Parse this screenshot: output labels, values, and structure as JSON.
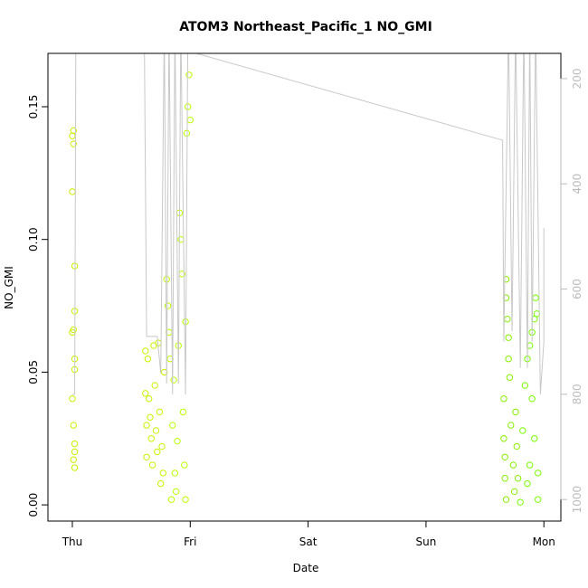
{
  "chart_data": {
    "type": "scatter",
    "title": "ATOM3 Northeast_Pacific_1 NO_GMI",
    "xlabel": "Date",
    "ylabel": "NO_GMI",
    "xlim": [
      -0.207,
      4.144
    ],
    "xticks": [
      {
        "value": 0,
        "label": "Thu"
      },
      {
        "value": 1,
        "label": "Fri"
      },
      {
        "value": 2,
        "label": "Sat"
      },
      {
        "value": 3,
        "label": "Sun"
      },
      {
        "value": 4,
        "label": "Mon"
      }
    ],
    "ylim": [
      -0.0061,
      0.1701
    ],
    "yticks": [
      {
        "value": 0,
        "label": "0.00"
      },
      {
        "value": 0.05,
        "label": "0.05"
      },
      {
        "value": 0.1,
        "label": "0.10"
      },
      {
        "value": 0.15,
        "label": "0.15"
      }
    ],
    "y2lim": [
      1041,
      152
    ],
    "y2ticks": [
      200,
      400,
      600,
      800,
      1000
    ],
    "y2color": "#bbbbbb",
    "series": [
      {
        "color": "#ccee00",
        "x": [
          0.01,
          0.0,
          0.01,
          0.0,
          0.02,
          0.02,
          0.01,
          0.0,
          0.02,
          0.02,
          0.0,
          0.01,
          0.02,
          0.02,
          0.01,
          0.02
        ],
        "values": [
          0.141,
          0.139,
          0.136,
          0.118,
          0.09,
          0.073,
          0.066,
          0.065,
          0.055,
          0.051,
          0.04,
          0.03,
          0.023,
          0.02,
          0.017,
          0.014
        ]
      },
      {
        "color": "#ccf000",
        "x": [
          0.62,
          0.62,
          0.63,
          0.63,
          0.64,
          0.65,
          0.66,
          0.67,
          0.68,
          0.69,
          0.7,
          0.71,
          0.72,
          0.73,
          0.74,
          0.75,
          0.76,
          0.77,
          0.78
        ],
        "values": [
          0.058,
          0.042,
          0.03,
          0.018,
          0.055,
          0.04,
          0.033,
          0.025,
          0.015,
          0.06,
          0.045,
          0.028,
          0.02,
          0.061,
          0.035,
          0.008,
          0.022,
          0.012,
          0.05
        ]
      },
      {
        "color": "#bbff00",
        "x": [
          0.8,
          0.81,
          0.82,
          0.83,
          0.84,
          0.85,
          0.86,
          0.87,
          0.88,
          0.89,
          0.9,
          0.91,
          0.92,
          0.93,
          0.94,
          0.95,
          0.96,
          0.97,
          0.98,
          0.99,
          1.0,
          0.96
        ],
        "values": [
          0.085,
          0.075,
          0.065,
          0.055,
          0.002,
          0.03,
          0.047,
          0.012,
          0.005,
          0.024,
          0.06,
          0.11,
          0.1,
          0.087,
          0.035,
          0.015,
          0.002,
          0.14,
          0.15,
          0.162,
          0.145,
          0.069
        ]
      },
      {
        "color": "#88ee00",
        "x": [
          3.68,
          3.68,
          3.69,
          3.7,
          3.7,
          3.71,
          3.66,
          3.66,
          3.67,
          3.67,
          3.68,
          3.72,
          3.74,
          3.75,
          3.76,
          3.77,
          3.78
        ],
        "values": [
          0.085,
          0.078,
          0.07,
          0.063,
          0.055,
          0.048,
          0.04,
          0.025,
          0.018,
          0.01,
          0.002,
          0.03,
          0.015,
          0.005,
          0.035,
          0.022,
          0.01
        ]
      },
      {
        "color": "#77ff00",
        "x": [
          3.8,
          3.82,
          3.84,
          3.86,
          3.88,
          3.9,
          3.92,
          3.93,
          3.94,
          3.9,
          3.92,
          3.88,
          3.86,
          3.95,
          3.95
        ],
        "values": [
          0.001,
          0.028,
          0.045,
          0.055,
          0.06,
          0.065,
          0.07,
          0.078,
          0.072,
          0.04,
          0.025,
          0.015,
          0.008,
          0.002,
          0.012
        ]
      },
      {
        "type": "line",
        "axis": "y2",
        "color": "#c8c8c8",
        "x": [
          0.0,
          0.02,
          0.03,
          0.61,
          0.63,
          0.72,
          0.75,
          0.78,
          0.8,
          0.82,
          0.85,
          0.87,
          0.9,
          0.92,
          0.96,
          0.98,
          1.02,
          3.65,
          3.66,
          3.7,
          3.73,
          3.76,
          3.8,
          3.83,
          3.86,
          3.88,
          3.9,
          3.93,
          3.97,
          4.0,
          4.0
        ],
        "values": [
          800,
          800,
          100,
          100,
          690,
          690,
          760,
          100,
          780,
          100,
          800,
          100,
          780,
          100,
          800,
          100,
          150,
          317,
          700,
          100,
          680,
          100,
          750,
          100,
          750,
          100,
          700,
          100,
          800,
          700,
          484
        ]
      }
    ]
  }
}
